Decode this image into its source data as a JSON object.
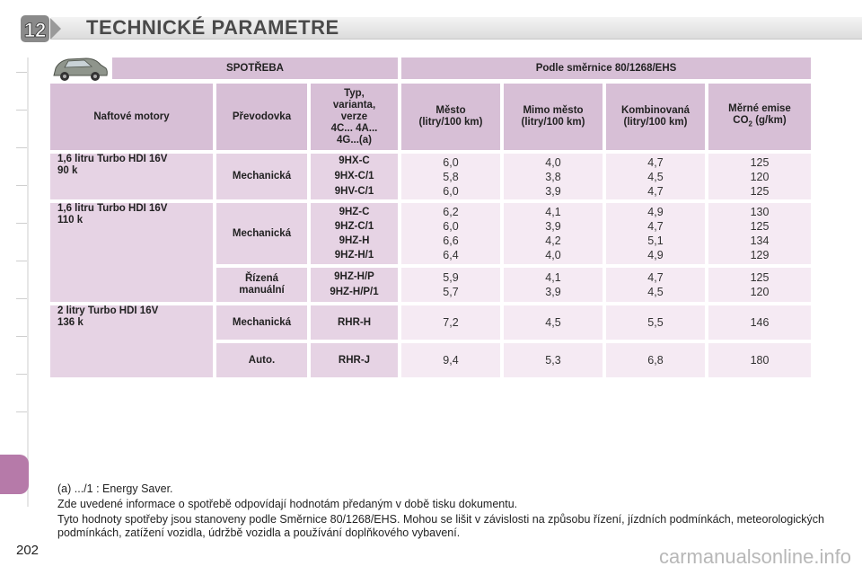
{
  "header": {
    "chapter_number": "12",
    "title": "TECHNICKÉ PARAMETRE"
  },
  "table": {
    "top_left_header": "SPOTŘEBA",
    "top_right_header": "Podle směrnice 80/1268/EHS",
    "columns": {
      "engine": "Naftové motory",
      "gearbox": "Převodovka",
      "type_lines": [
        "Typ,",
        "varianta,",
        "verze",
        "4C... 4A...",
        "4G...(a)"
      ],
      "city_lines": [
        "Město",
        "(litry/100 km)"
      ],
      "extra_lines": [
        "Mimo město",
        "(litry/100 km)"
      ],
      "combined_lines": [
        "Kombinovaná",
        "(litry/100 km)"
      ],
      "co2_line1": "Měrné emise",
      "co2_line2_a": "CO",
      "co2_line2_sub": "2",
      "co2_line2_b": " (g/km)"
    },
    "groups": [
      {
        "engine_lines": [
          "1,6 litru Turbo HDI 16V",
          "90 k"
        ],
        "rows": [
          {
            "gearbox_lines": [
              "Mechanická"
            ],
            "types": [
              "9HX-C",
              "9HX-C/1",
              "9HV-C/1"
            ],
            "city": [
              "6,0",
              "5,8",
              "6,0"
            ],
            "extra": [
              "4,0",
              "3,8",
              "3,9"
            ],
            "combined": [
              "4,7",
              "4,5",
              "4,7"
            ],
            "co2": [
              "125",
              "120",
              "125"
            ]
          }
        ]
      },
      {
        "engine_lines": [
          "1,6 litru Turbo HDI 16V",
          "110 k"
        ],
        "rows": [
          {
            "gearbox_lines": [
              "Mechanická"
            ],
            "types": [
              "9HZ-C",
              "9HZ-C/1",
              "9HZ-H",
              "9HZ-H/1"
            ],
            "city": [
              "6,2",
              "6,0",
              "6,6",
              "6,4"
            ],
            "extra": [
              "4,1",
              "3,9",
              "4,2",
              "4,0"
            ],
            "combined": [
              "4,9",
              "4,7",
              "5,1",
              "4,9"
            ],
            "co2": [
              "130",
              "125",
              "134",
              "129"
            ]
          },
          {
            "gearbox_lines": [
              "Řízená",
              "manuální"
            ],
            "types": [
              "9HZ-H/P",
              "9HZ-H/P/1"
            ],
            "city": [
              "5,9",
              "5,7"
            ],
            "extra": [
              "4,1",
              "3,9"
            ],
            "combined": [
              "4,7",
              "4,5"
            ],
            "co2": [
              "125",
              "120"
            ]
          }
        ]
      },
      {
        "engine_lines": [
          "2 litry Turbo HDI 16V",
          "136 k"
        ],
        "rows": [
          {
            "gearbox_lines": [
              "Mechanická"
            ],
            "types": [
              "RHR-H"
            ],
            "city": [
              "7,2"
            ],
            "extra": [
              "4,5"
            ],
            "combined": [
              "5,5"
            ],
            "co2": [
              "146"
            ]
          },
          {
            "gearbox_lines": [
              "Auto."
            ],
            "types": [
              "RHR-J"
            ],
            "city": [
              "9,4"
            ],
            "extra": [
              "5,3"
            ],
            "combined": [
              "6,8"
            ],
            "co2": [
              "180"
            ]
          }
        ]
      }
    ]
  },
  "footnotes": [
    "(a) .../1 : Energy Saver.",
    "Zde uvedené informace o spotřebě odpovídají hodnotám předaným v době tisku dokumentu.",
    "Tyto hodnoty spotřeby jsou stanoveny podle Směrnice 80/1268/EHS. Mohou se lišit v závislosti na způsobu řízení, jízdních podmínkách, meteorologických podmínkách, zatížení vozidla, údržbě vozidla a používání doplňkového vybavení."
  ],
  "page_number": "202",
  "watermark": "carmanualsonline.info",
  "colors": {
    "header_cell": "#d7bfd6",
    "label_cell": "#e6d3e4",
    "value_cell": "#f5eaf3",
    "accent_tab": "#b67aa9",
    "badge": "#7a7a7a"
  },
  "icons": {
    "car": "car-icon",
    "chapter": "chapter-badge-icon"
  }
}
